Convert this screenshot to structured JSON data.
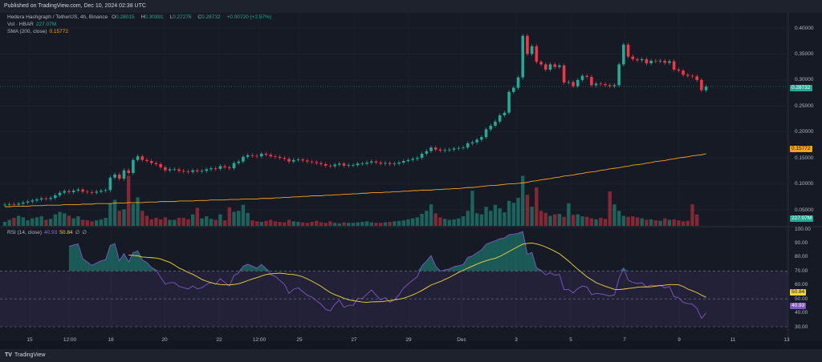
{
  "published": "Published on TradingView.com, Dec 10, 2024 02:38 UTC",
  "legend": {
    "symbol": "Hedera Hashgraph / TetherUS, 4h, Binance",
    "o_label": "O",
    "o": "0.28015",
    "h_label": "H",
    "h": "0.30391",
    "l_label": "L",
    "l": "0.27276",
    "c_label": "C",
    "c": "0.28732",
    "change": "+0.00720 (+2.57%)",
    "vol_label": "Vol · HBAR",
    "vol": "227.07M",
    "sma_label": "SMA (200, close)",
    "sma": "0.15772",
    "rsi_label": "RSI (14, close)",
    "rsi": "40.93",
    "rsi_ma": "50.84",
    "rsi_extra1": "∅",
    "rsi_extra2": "∅"
  },
  "price_axis": [
    "0.40000",
    "0.35000",
    "0.30000",
    "0.25000",
    "0.20000",
    "0.15000",
    "0.10000",
    "0.05000"
  ],
  "rsi_axis": [
    "100.00",
    "90.00",
    "80.00",
    "70.00",
    "60.00",
    "50.00",
    "40.00",
    "30.00"
  ],
  "time_axis": [
    "15",
    "12:00",
    "18",
    "20",
    "22",
    "12:00",
    "25",
    "27",
    "29",
    "Dec",
    "3",
    "5",
    "7",
    "9",
    "11",
    "13"
  ],
  "tags": {
    "last_price": "0.28732",
    "sma": "0.15772",
    "volume": "227.07M",
    "rsi_ma": "50.84",
    "rsi": "40.93"
  },
  "colors": {
    "up": "#22ab94",
    "down": "#f23645",
    "sma": "#f7a21b",
    "rsi": "#7e57c2",
    "rsi_ma": "#f3d53b",
    "background": "#161a25"
  },
  "footer": {
    "logo": "TV",
    "brand": "TradingView"
  },
  "chart_data": {
    "type": "candlestick",
    "interval": "4h",
    "price_range": [
      0.05,
      0.4
    ],
    "closes": [
      0.06,
      0.061,
      0.06,
      0.062,
      0.064,
      0.066,
      0.068,
      0.07,
      0.072,
      0.071,
      0.073,
      0.078,
      0.083,
      0.086,
      0.084,
      0.087,
      0.089,
      0.085,
      0.084,
      0.083,
      0.085,
      0.087,
      0.088,
      0.112,
      0.118,
      0.11,
      0.126,
      0.121,
      0.146,
      0.153,
      0.146,
      0.144,
      0.14,
      0.138,
      0.132,
      0.126,
      0.128,
      0.128,
      0.125,
      0.124,
      0.123,
      0.126,
      0.124,
      0.125,
      0.128,
      0.13,
      0.129,
      0.134,
      0.132,
      0.13,
      0.14,
      0.143,
      0.152,
      0.155,
      0.154,
      0.153,
      0.158,
      0.156,
      0.153,
      0.152,
      0.15,
      0.148,
      0.143,
      0.146,
      0.147,
      0.145,
      0.143,
      0.142,
      0.14,
      0.138,
      0.135,
      0.134,
      0.137,
      0.139,
      0.135,
      0.136,
      0.136,
      0.139,
      0.139,
      0.141,
      0.143,
      0.141,
      0.139,
      0.14,
      0.138,
      0.139,
      0.141,
      0.144,
      0.146,
      0.148,
      0.15,
      0.158,
      0.163,
      0.17,
      0.166,
      0.164,
      0.165,
      0.166,
      0.168,
      0.169,
      0.17,
      0.178,
      0.18,
      0.185,
      0.19,
      0.205,
      0.212,
      0.22,
      0.232,
      0.237,
      0.277,
      0.285,
      0.305,
      0.385,
      0.35,
      0.365,
      0.335,
      0.33,
      0.32,
      0.33,
      0.325,
      0.328,
      0.295,
      0.296,
      0.288,
      0.3,
      0.308,
      0.306,
      0.29,
      0.293,
      0.292,
      0.29,
      0.288,
      0.29,
      0.33,
      0.368,
      0.345,
      0.34,
      0.338,
      0.34,
      0.332,
      0.337,
      0.336,
      0.337,
      0.333,
      0.336,
      0.32,
      0.318,
      0.31,
      0.308,
      0.307,
      0.3,
      0.28015,
      0.28732
    ],
    "volumes_m": [
      80,
      120,
      160,
      200,
      170,
      110,
      150,
      170,
      190,
      120,
      140,
      230,
      280,
      250,
      200,
      150,
      190,
      120,
      110,
      90,
      110,
      130,
      160,
      450,
      520,
      300,
      330,
      1000,
      440,
      570,
      300,
      200,
      130,
      160,
      130,
      170,
      120,
      120,
      160,
      160,
      130,
      230,
      360,
      150,
      190,
      140,
      120,
      230,
      110,
      370,
      280,
      300,
      420,
      260,
      110,
      90,
      80,
      100,
      120,
      90,
      80,
      70,
      120,
      90,
      80,
      70,
      60,
      80,
      100,
      70,
      60,
      90,
      60,
      50,
      70,
      60,
      60,
      70,
      80,
      90,
      70,
      60,
      60,
      70,
      80,
      90,
      100,
      110,
      130,
      150,
      170,
      240,
      300,
      430,
      250,
      170,
      140,
      120,
      130,
      150,
      190,
      300,
      700,
      250,
      230,
      380,
      300,
      420,
      350,
      270,
      500,
      460,
      560,
      1000,
      620,
      380,
      770,
      300,
      260,
      200,
      230,
      240,
      180,
      450,
      220,
      230,
      190,
      180,
      150,
      130,
      160,
      140,
      690,
      430,
      300,
      200,
      180,
      190,
      170,
      150,
      120,
      130,
      110,
      100,
      150,
      120,
      130,
      110,
      90,
      100,
      430,
      227
    ],
    "sma200": [
      0.056,
      0.056,
      0.057,
      0.057,
      0.057,
      0.057,
      0.058,
      0.058,
      0.058,
      0.059,
      0.059,
      0.059,
      0.059,
      0.06,
      0.06,
      0.06,
      0.06,
      0.061,
      0.061,
      0.061,
      0.062,
      0.062,
      0.062,
      0.062,
      0.063,
      0.063,
      0.063,
      0.064,
      0.064,
      0.064,
      0.064,
      0.065,
      0.065,
      0.065,
      0.066,
      0.066,
      0.066,
      0.066,
      0.067,
      0.067,
      0.067,
      0.067,
      0.068,
      0.068,
      0.068,
      0.069,
      0.069,
      0.069,
      0.069,
      0.07,
      0.07,
      0.07,
      0.071,
      0.071,
      0.071,
      0.071,
      0.072,
      0.072,
      0.072,
      0.073,
      0.073,
      0.074,
      0.074,
      0.075,
      0.075,
      0.076,
      0.076,
      0.077,
      0.077,
      0.077,
      0.078,
      0.078,
      0.079,
      0.079,
      0.08,
      0.08,
      0.081,
      0.081,
      0.082,
      0.082,
      0.083,
      0.083,
      0.083,
      0.084,
      0.084,
      0.085,
      0.085,
      0.086,
      0.086,
      0.087,
      0.087,
      0.088,
      0.088,
      0.088,
      0.089,
      0.089,
      0.09,
      0.09,
      0.091,
      0.091,
      0.092,
      0.093,
      0.093,
      0.094,
      0.095,
      0.096,
      0.097,
      0.097,
      0.098,
      0.099,
      0.1,
      0.1,
      0.101,
      0.102,
      0.103,
      0.105,
      0.106,
      0.108,
      0.109,
      0.11,
      0.112,
      0.113,
      0.115,
      0.116,
      0.117,
      0.119,
      0.12,
      0.122,
      0.123,
      0.124,
      0.126,
      0.127,
      0.129,
      0.13,
      0.131,
      0.133,
      0.134,
      0.136,
      0.137,
      0.138,
      0.14,
      0.141,
      0.143,
      0.144,
      0.145,
      0.147,
      0.148,
      0.15,
      0.151,
      0.152,
      0.154,
      0.155,
      0.156,
      0.158
    ],
    "rsi": {
      "period": 14,
      "ma_period": 14,
      "range": [
        30,
        100
      ],
      "bands": [
        70,
        50,
        30
      ]
    }
  }
}
